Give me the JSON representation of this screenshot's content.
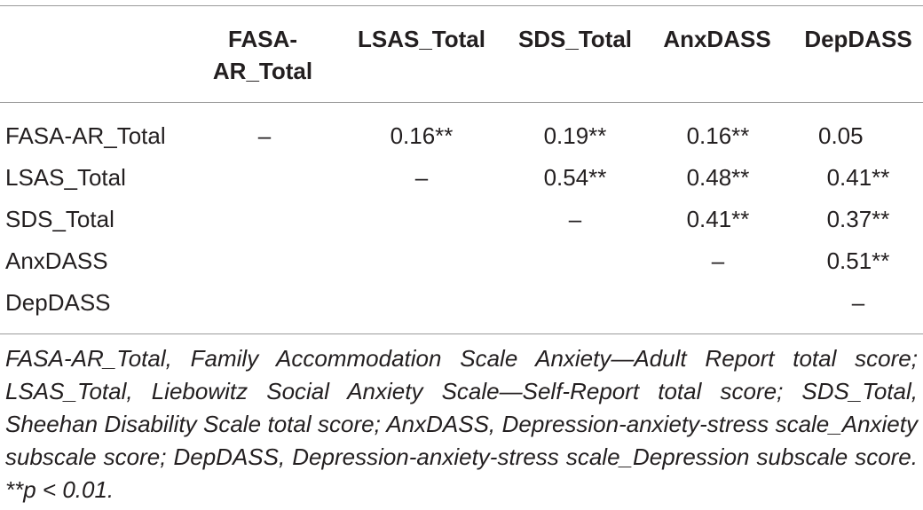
{
  "table": {
    "columns": [
      "FASA-\nAR_Total",
      "LSAS_Total",
      "SDS_Total",
      "AnxDASS",
      "DepDASS"
    ],
    "column_line1": [
      "FASA-",
      "LSAS_Total",
      "SDS_Total",
      "AnxDASS",
      "DepDASS"
    ],
    "column_line2": [
      "AR_Total",
      "",
      "",
      "",
      ""
    ],
    "rows": [
      {
        "label": "FASA-AR_Total",
        "cells": [
          "–",
          "0.16**",
          "0.19**",
          "0.16**",
          "0.05"
        ]
      },
      {
        "label": "LSAS_Total",
        "cells": [
          "",
          "–",
          "0.54**",
          "0.48**",
          "0.41**"
        ]
      },
      {
        "label": "SDS_Total",
        "cells": [
          "",
          "",
          "–",
          "0.41**",
          "0.37**"
        ]
      },
      {
        "label": "AnxDASS",
        "cells": [
          "",
          "",
          "",
          "–",
          "0.51**"
        ]
      },
      {
        "label": "DepDASS",
        "cells": [
          "",
          "",
          "",
          "",
          "–"
        ]
      }
    ]
  },
  "footnote": "FASA-AR_Total, Family Accommodation Scale Anxiety—Adult Report total score; LSAS_Total, Liebowitz Social Anxiety Scale—Self-Report total score; SDS_Total, Sheehan Disability Scale total score; AnxDASS, Depression-anxiety-stress scale_Anxiety subscale score; DepDASS, Depression-anxiety-stress scale_Depression subscale score. **p < 0.01."
}
